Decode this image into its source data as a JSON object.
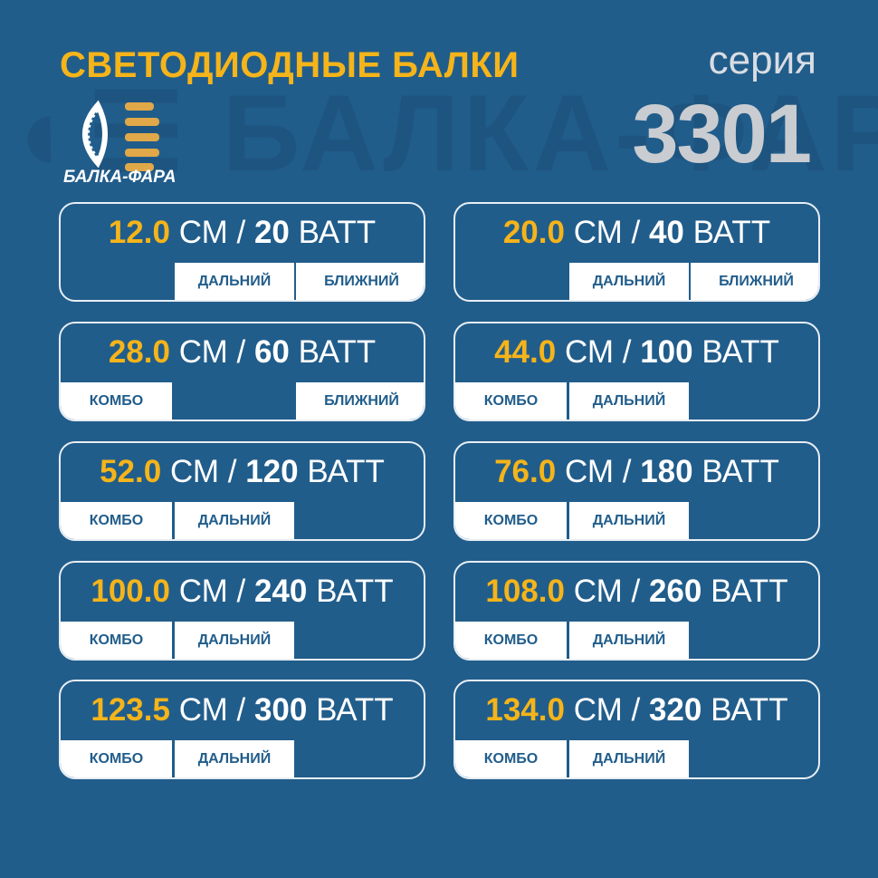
{
  "header": {
    "title": "СВЕТОДИОДНЫЕ БАЛКИ",
    "series_label": "серия",
    "series_number": "3301"
  },
  "logo": {
    "text": "БАЛКА-ФАРА",
    "watermark": "БАЛКА-ФАРА",
    "icon": "headlight-logo-icon"
  },
  "colors": {
    "background": "#215d8b",
    "accent": "#f5b41a"
  },
  "units": {
    "length": "СМ",
    "power": "ВАТТ",
    "separator": "/"
  },
  "cards": [
    {
      "length": "12.0",
      "power": "20",
      "slots": [
        "",
        "ДАЛЬНИЙ",
        "БЛИЖНИЙ"
      ]
    },
    {
      "length": "20.0",
      "power": "40",
      "slots": [
        "",
        "ДАЛЬНИЙ",
        "БЛИЖНИЙ"
      ]
    },
    {
      "length": "28.0",
      "power": "60",
      "slots": [
        "КОМБО",
        "",
        "БЛИЖНИЙ"
      ]
    },
    {
      "length": "44.0",
      "power": "100",
      "slots": [
        "КОМБО",
        "ДАЛЬНИЙ",
        ""
      ]
    },
    {
      "length": "52.0",
      "power": "120",
      "slots": [
        "КОМБО",
        "ДАЛЬНИЙ",
        ""
      ]
    },
    {
      "length": "76.0",
      "power": "180",
      "slots": [
        "КОМБО",
        "ДАЛЬНИЙ",
        ""
      ]
    },
    {
      "length": "100.0",
      "power": "240",
      "slots": [
        "КОМБО",
        "ДАЛЬНИЙ",
        ""
      ]
    },
    {
      "length": "108.0",
      "power": "260",
      "slots": [
        "КОМБО",
        "ДАЛЬНИЙ",
        ""
      ]
    },
    {
      "length": "123.5",
      "power": "300",
      "slots": [
        "КОМБО",
        "ДАЛЬНИЙ",
        ""
      ]
    },
    {
      "length": "134.0",
      "power": "320",
      "slots": [
        "КОМБО",
        "ДАЛЬНИЙ",
        ""
      ]
    }
  ]
}
